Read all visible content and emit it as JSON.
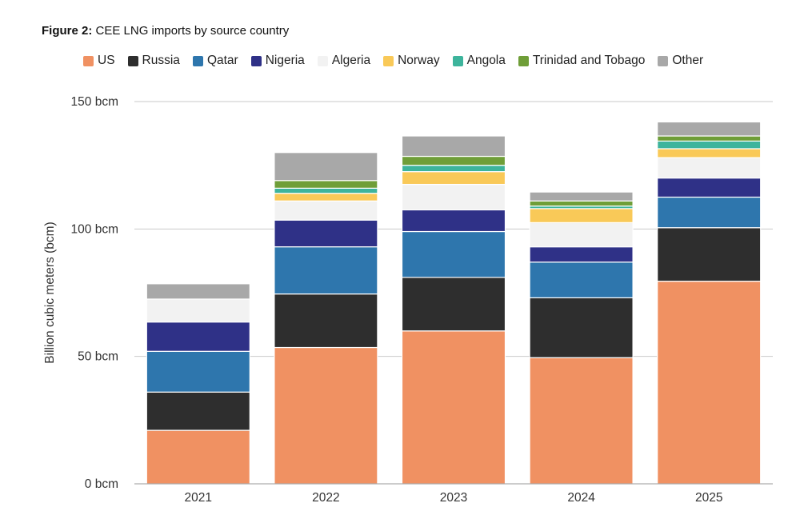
{
  "figure": {
    "label": "Figure 2:",
    "title": "CEE LNG imports by source country"
  },
  "chart_data": {
    "type": "bar",
    "stacked": true,
    "title": "CEE LNG imports by source country",
    "xlabel": "",
    "ylabel": "Billion cubic meters (bcm)",
    "ylim": [
      0,
      150
    ],
    "yticks": [
      0,
      50,
      100,
      150
    ],
    "ytick_labels": [
      "0 bcm",
      "50 bcm",
      "100 bcm",
      "150 bcm"
    ],
    "grid": true,
    "legend_position": "top",
    "categories": [
      "2021",
      "2022",
      "2023",
      "2024",
      "2025"
    ],
    "series": [
      {
        "name": "US",
        "color": "#f09162",
        "values": [
          21,
          53.5,
          60,
          49.5,
          79.5
        ]
      },
      {
        "name": "Russia",
        "color": "#2e2e2e",
        "values": [
          15,
          21,
          21,
          23.5,
          21
        ]
      },
      {
        "name": "Qatar",
        "color": "#2e76ad",
        "values": [
          16,
          18.5,
          18,
          14,
          12
        ]
      },
      {
        "name": "Nigeria",
        "color": "#2f3187",
        "values": [
          11.5,
          10.5,
          8.5,
          6,
          7.5
        ]
      },
      {
        "name": "Algeria",
        "color": "#f2f2f2",
        "values": [
          9,
          7.5,
          10,
          9.5,
          8
        ]
      },
      {
        "name": "Norway",
        "color": "#f9c958",
        "values": [
          0,
          3,
          5,
          5.5,
          3.5
        ]
      },
      {
        "name": "Angola",
        "color": "#3db49c",
        "values": [
          0,
          2,
          2.5,
          1,
          3
        ]
      },
      {
        "name": "Trinidad and Tobago",
        "color": "#6f9e38",
        "values": [
          0,
          3,
          3.5,
          2,
          2
        ]
      },
      {
        "name": "Other",
        "color": "#a8a8a8",
        "values": [
          6,
          11,
          8,
          3.5,
          5.5
        ]
      }
    ]
  }
}
